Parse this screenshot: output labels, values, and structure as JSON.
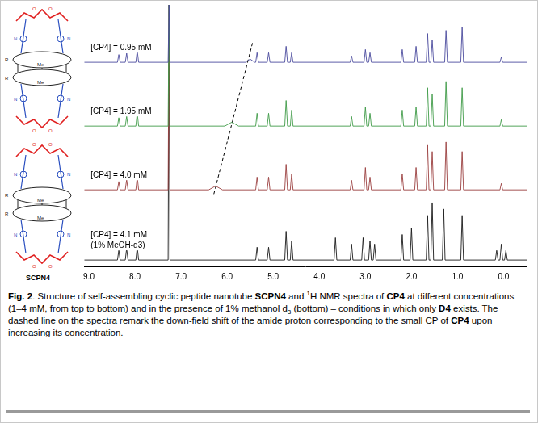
{
  "structure": {
    "name": "SCPN4",
    "atom_labels": {
      "substituent": "R",
      "methyl": "Me",
      "nitrogen": "N",
      "oxygen": "O"
    }
  },
  "chart_data": {
    "type": "line",
    "xlim": [
      9.1,
      -0.5
    ],
    "ylim": [
      0,
      41
    ],
    "xticks": [
      {
        "value": 9,
        "label": "9.0"
      },
      {
        "value": 8,
        "label": "8.0"
      },
      {
        "value": 7,
        "label": "7.0"
      },
      {
        "value": 6,
        "label": "6.0"
      },
      {
        "value": 5,
        "label": "5.0"
      },
      {
        "value": 4,
        "label": "4.0"
      },
      {
        "value": 3,
        "label": "3.0"
      },
      {
        "value": 2,
        "label": "2.0"
      },
      {
        "value": 1,
        "label": "1.0"
      },
      {
        "value": 0,
        "label": "0.0"
      }
    ],
    "tick_labels": "x",
    "grid": false,
    "series": [
      {
        "name": "[CP4] = 0.95 mM",
        "color": "#4c4c9e",
        "x": [
          9.1,
          8.38,
          8.35,
          8.32,
          8.21,
          8.18,
          8.15,
          7.98,
          7.95,
          7.92,
          7.28,
          7.26,
          7.24,
          5.6,
          5.5,
          5.4,
          5.38,
          5.35,
          5.32,
          5.13,
          5.1,
          5.07,
          4.75,
          4.72,
          4.69,
          4.63,
          4.6,
          4.57,
          3.33,
          3.3,
          3.27,
          3.03,
          3.0,
          2.97,
          2.93,
          2.9,
          2.87,
          2.23,
          2.2,
          2.17,
          1.93,
          1.9,
          1.87,
          1.68,
          1.65,
          1.62,
          1.58,
          1.55,
          1.52,
          1.28,
          1.25,
          1.22,
          0.93,
          0.9,
          0.87,
          0.08,
          0.05,
          0.02,
          -0.5
        ],
        "values": [
          32,
          32,
          33.2,
          32,
          32,
          33.4,
          32,
          32,
          33.8,
          32,
          32,
          41,
          32,
          32,
          32.5,
          32,
          32,
          33.5,
          32,
          32,
          33.5,
          32,
          32,
          34.5,
          32,
          32,
          33.5,
          32,
          32,
          33,
          32,
          32,
          34,
          32,
          32,
          33.5,
          32,
          32,
          34,
          32,
          32,
          34.5,
          32,
          32,
          36.5,
          32,
          32,
          35.5,
          32,
          32,
          37,
          32,
          32,
          37.5,
          32,
          32,
          32.8,
          32,
          32
        ]
      },
      {
        "name": "[CP4] = 1.95 mM",
        "color": "#3f9b47",
        "x": [
          9.1,
          8.38,
          8.35,
          8.32,
          8.21,
          8.18,
          8.15,
          7.98,
          7.95,
          7.92,
          7.28,
          7.26,
          7.24,
          6.05,
          5.9,
          5.75,
          5.38,
          5.35,
          5.32,
          5.13,
          5.1,
          5.07,
          4.75,
          4.72,
          4.69,
          4.63,
          4.6,
          4.57,
          3.33,
          3.3,
          3.27,
          3.03,
          3.0,
          2.97,
          2.93,
          2.9,
          2.87,
          2.23,
          2.2,
          2.17,
          1.93,
          1.9,
          1.87,
          1.68,
          1.65,
          1.62,
          1.58,
          1.55,
          1.52,
          1.28,
          1.25,
          1.22,
          0.93,
          0.9,
          0.87,
          0.08,
          0.05,
          0.02,
          -0.5
        ],
        "values": [
          22,
          22,
          23.3,
          22,
          22,
          23.5,
          22,
          22,
          24,
          22,
          22,
          41,
          22,
          22,
          22.6,
          22,
          22,
          24,
          22,
          22,
          24,
          22,
          22,
          26,
          22,
          22,
          24.5,
          22,
          22,
          23.5,
          22,
          22,
          25,
          22,
          22,
          24,
          22,
          22,
          24.5,
          22,
          22,
          25,
          22,
          22,
          28,
          22,
          22,
          27,
          22,
          22,
          29,
          22,
          22,
          28,
          22,
          22,
          23,
          22,
          22
        ]
      },
      {
        "name": "[CP4] = 4.0 mM",
        "color": "#9b3f3f",
        "x": [
          9.1,
          8.38,
          8.35,
          8.32,
          8.21,
          8.18,
          8.15,
          7.98,
          7.95,
          7.92,
          7.28,
          7.26,
          7.24,
          6.4,
          6.25,
          6.1,
          5.38,
          5.35,
          5.32,
          5.13,
          5.1,
          5.07,
          4.75,
          4.72,
          4.69,
          4.63,
          4.6,
          4.57,
          3.33,
          3.3,
          3.27,
          3.03,
          3.0,
          2.97,
          2.93,
          2.9,
          2.87,
          2.23,
          2.2,
          2.17,
          1.93,
          1.9,
          1.87,
          1.68,
          1.65,
          1.62,
          1.58,
          1.55,
          1.52,
          1.28,
          1.25,
          1.22,
          0.93,
          0.9,
          0.87,
          0.08,
          0.05,
          0.02,
          -0.5
        ],
        "values": [
          12,
          12,
          13.3,
          12,
          12,
          13.6,
          12,
          12,
          14,
          12,
          12,
          41,
          12,
          12,
          12.6,
          12,
          12,
          14,
          12,
          12,
          14,
          12,
          12,
          16,
          12,
          12,
          14.5,
          12,
          12,
          13.5,
          12,
          12,
          15.5,
          12,
          12,
          14,
          12,
          12,
          14.5,
          12,
          12,
          15.5,
          12,
          12,
          19,
          12,
          12,
          18,
          12,
          12,
          19.5,
          12,
          12,
          18,
          12,
          12,
          13,
          12,
          12
        ]
      },
      {
        "name": "[CP4] = 4.1 mM",
        "note": "(1% MeOH-d3)",
        "color": "#1a1a1a",
        "x": [
          9.1,
          8.38,
          8.35,
          8.32,
          8.21,
          8.18,
          8.15,
          7.98,
          7.95,
          7.92,
          7.28,
          7.26,
          7.24,
          5.38,
          5.35,
          5.32,
          5.13,
          5.1,
          5.07,
          4.75,
          4.72,
          4.69,
          4.63,
          4.6,
          4.57,
          3.68,
          3.65,
          3.62,
          3.33,
          3.3,
          3.27,
          3.08,
          3.05,
          3.02,
          2.93,
          2.9,
          2.87,
          2.83,
          2.8,
          2.77,
          2.23,
          2.2,
          2.17,
          2.03,
          2.0,
          1.97,
          1.68,
          1.65,
          1.62,
          1.58,
          1.55,
          1.52,
          1.33,
          1.3,
          1.27,
          0.93,
          0.9,
          0.87,
          0.18,
          0.15,
          0.12,
          0.08,
          0.05,
          0.02,
          -0.02,
          -0.05,
          -0.08,
          -0.5
        ],
        "values": [
          1,
          1,
          2.5,
          1,
          1,
          2.8,
          1,
          1,
          3,
          1,
          1,
          41,
          1,
          1,
          3,
          1,
          1,
          3,
          1,
          1,
          5.5,
          1,
          1,
          4,
          1,
          1,
          4.5,
          1,
          1,
          3.5,
          1,
          1,
          4.5,
          1,
          1,
          4,
          1,
          1,
          3.5,
          1,
          1,
          5,
          1,
          1,
          6,
          1,
          1,
          8,
          1,
          1,
          10,
          1,
          1,
          9,
          1,
          1,
          8,
          1,
          1,
          2.5,
          1,
          1,
          3.5,
          1,
          1,
          2.5,
          1,
          1
        ]
      }
    ],
    "annotations": [
      {
        "x": [
          5.45,
          6.3
        ],
        "values": [
          35,
          11
        ],
        "line_style": "dashed",
        "color": "#000000"
      }
    ]
  },
  "caption": [
    {
      "text": "Fig. 2",
      "bold": true
    },
    {
      "text": ". Structure of self-assembling cyclic peptide nanotube "
    },
    {
      "text": "SCPN4",
      "bold": true
    },
    {
      "text": " and "
    },
    {
      "text": "1",
      "sup": true
    },
    {
      "text": "H NMR spectra of "
    },
    {
      "text": "CP4",
      "bold": true
    },
    {
      "text": " at different concentrations (1–4 mM, from top to bottom) and in the presence of 1% methanol d"
    },
    {
      "text": "3",
      "sub": true
    },
    {
      "text": " (bottom) – conditions in which only "
    },
    {
      "text": "D4",
      "bold": true
    },
    {
      "text": " exists. The dashed line on the spectra remark the down-field shift of the amide proton corresponding to the small CP of "
    },
    {
      "text": "CP4",
      "bold": true
    },
    {
      "text": " upon increasing its concentration."
    }
  ]
}
